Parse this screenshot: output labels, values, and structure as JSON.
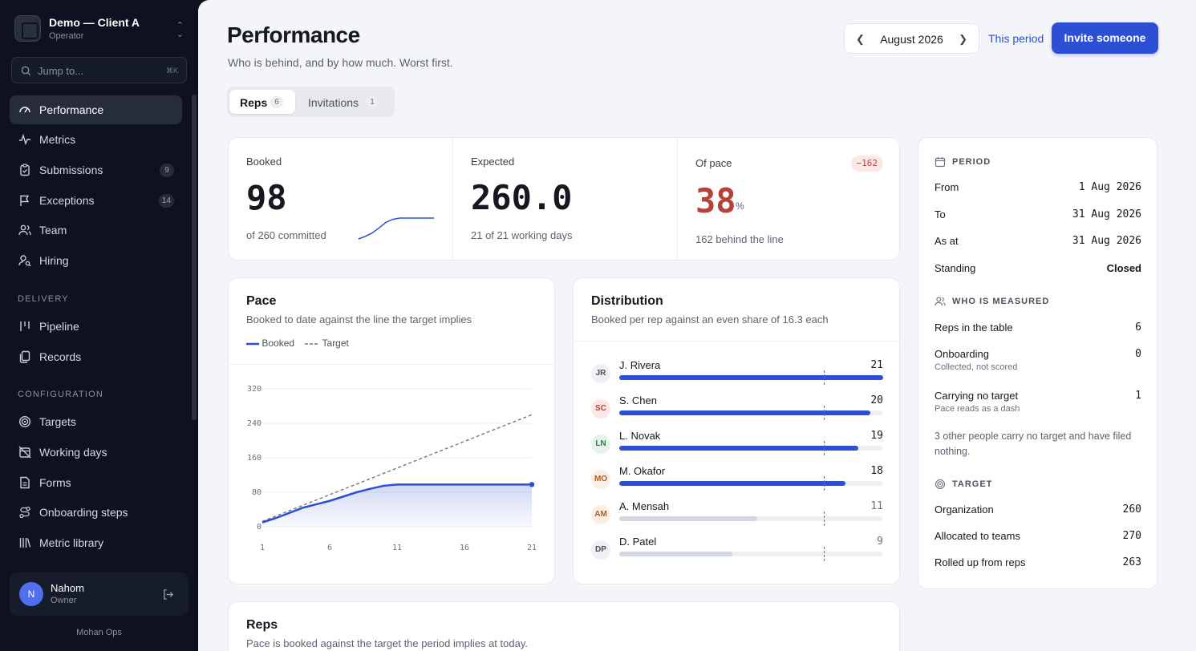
{
  "workspace": {
    "name": "Demo — Client A",
    "role": "Operator"
  },
  "search": {
    "placeholder": "Jump to...",
    "shortcut": "⌘K"
  },
  "nav": {
    "main": [
      {
        "label": "Performance",
        "icon": "gauge-icon",
        "active": true
      },
      {
        "label": "Metrics",
        "icon": "activity-icon"
      },
      {
        "label": "Submissions",
        "icon": "clipboard-icon",
        "badge": "9"
      },
      {
        "label": "Exceptions",
        "icon": "flag-icon",
        "badge": "14"
      },
      {
        "label": "Team",
        "icon": "users-icon"
      },
      {
        "label": "Hiring",
        "icon": "user-search-icon"
      }
    ],
    "delivery_heading": "DELIVERY",
    "delivery": [
      {
        "label": "Pipeline",
        "icon": "columns-icon"
      },
      {
        "label": "Records",
        "icon": "files-icon"
      }
    ],
    "configuration_heading": "CONFIGURATION",
    "configuration": [
      {
        "label": "Targets",
        "icon": "target-icon"
      },
      {
        "label": "Working days",
        "icon": "calendar-off-icon"
      },
      {
        "label": "Forms",
        "icon": "file-text-icon"
      },
      {
        "label": "Onboarding steps",
        "icon": "route-icon"
      },
      {
        "label": "Metric library",
        "icon": "library-icon"
      }
    ]
  },
  "user": {
    "initial": "N",
    "name": "Nahom",
    "role": "Owner"
  },
  "footer": {
    "brand": "Mohan Ops"
  },
  "header": {
    "title": "Performance",
    "subtitle": "Who is behind, and by how much. Worst first."
  },
  "period_nav": {
    "label": "August 2026"
  },
  "actions": {
    "this_period": "This period",
    "invite": "Invite someone"
  },
  "tabs": [
    {
      "label": "Reps",
      "count": "6"
    },
    {
      "label": "Invitations",
      "count": "1"
    }
  ],
  "stats": {
    "booked": {
      "label": "Booked",
      "value": "98",
      "foot": "of 260 committed",
      "spark": [
        0,
        12,
        28,
        52,
        78,
        92,
        98,
        98,
        98,
        98,
        98,
        98
      ]
    },
    "expected": {
      "label": "Expected",
      "value": "260.0",
      "foot": "21 of 21 working days"
    },
    "pace": {
      "label": "Of pace",
      "delta": "−162",
      "value": "38",
      "unit": "%",
      "foot": "162 behind the line"
    }
  },
  "pace_card": {
    "title": "Pace",
    "subtitle": "Booked to date against the line the target implies",
    "legend_booked": "Booked",
    "legend_target": "Target"
  },
  "distribution": {
    "title": "Distribution",
    "subtitle": "Booked per rep against an even share of 16.3 each",
    "share": 16.3,
    "max": 21
  },
  "reps_dist": [
    {
      "initials": "JR",
      "name": "J. Rivera",
      "value": 21,
      "ontrack": true,
      "bg": "#eef0f5",
      "fg": "#4a505c"
    },
    {
      "initials": "SC",
      "name": "S. Chen",
      "value": 20,
      "ontrack": true,
      "bg": "#fbe6e6",
      "fg": "#b5413a"
    },
    {
      "initials": "LN",
      "name": "L. Novak",
      "value": 19,
      "ontrack": true,
      "bg": "#e5f3ea",
      "fg": "#2e7d4f"
    },
    {
      "initials": "MO",
      "name": "M. Okafor",
      "value": 18,
      "ontrack": true,
      "bg": "#fbeee3",
      "fg": "#b45a22"
    },
    {
      "initials": "AM",
      "name": "A. Mensah",
      "value": 11,
      "ontrack": false,
      "bg": "#fbeee3",
      "fg": "#b45a22"
    },
    {
      "initials": "DP",
      "name": "D. Patel",
      "value": 9,
      "ontrack": false,
      "bg": "#eef0f5",
      "fg": "#4a505c"
    }
  ],
  "period_panel": {
    "period_heading": "PERIOD",
    "from_label": "From",
    "from": "1 Aug 2026",
    "to_label": "To",
    "to": "31 Aug 2026",
    "asat_label": "As at",
    "asat": "31 Aug 2026",
    "standing_label": "Standing",
    "standing": "Closed",
    "measured_heading": "WHO IS MEASURED",
    "reps_label": "Reps in the table",
    "reps": "6",
    "onboarding_label": "Onboarding",
    "onboarding": "0",
    "onboarding_sub": "Collected, not scored",
    "notarget_label": "Carrying no target",
    "notarget": "1",
    "notarget_sub": "Pace reads as a dash",
    "note": "3 other people carry no target and have filed nothing.",
    "target_heading": "TARGET",
    "org_label": "Organization",
    "org": "260",
    "teams_label": "Allocated to teams",
    "teams": "270",
    "rolled_label": "Rolled up from reps",
    "rolled": "263"
  },
  "reps_card": {
    "title": "Reps",
    "subtitle": "Pace is booked against the target the period implies at today."
  },
  "chart_data": {
    "type": "line",
    "x": [
      1,
      2,
      3,
      4,
      5,
      6,
      7,
      8,
      9,
      10,
      11,
      12,
      13,
      14,
      15,
      16,
      17,
      18,
      19,
      20,
      21
    ],
    "series": [
      {
        "name": "Booked",
        "values": [
          10,
          20,
          32,
          44,
          52,
          60,
          70,
          80,
          88,
          95,
          98,
          98,
          98,
          98,
          98,
          98,
          98,
          98,
          98,
          98,
          98
        ]
      },
      {
        "name": "Target",
        "values": [
          12.4,
          24.8,
          37.1,
          49.5,
          61.9,
          74.3,
          86.7,
          99.0,
          111.4,
          123.8,
          136.2,
          148.6,
          161.0,
          173.3,
          185.7,
          198.1,
          210.5,
          222.9,
          235.2,
          247.6,
          260
        ]
      }
    ],
    "xticks": [
      1,
      6,
      11,
      16,
      21
    ],
    "yticks": [
      0,
      80,
      160,
      240,
      320
    ],
    "ylim": [
      0,
      320
    ],
    "xlabel": "",
    "ylabel": "",
    "title": ""
  }
}
